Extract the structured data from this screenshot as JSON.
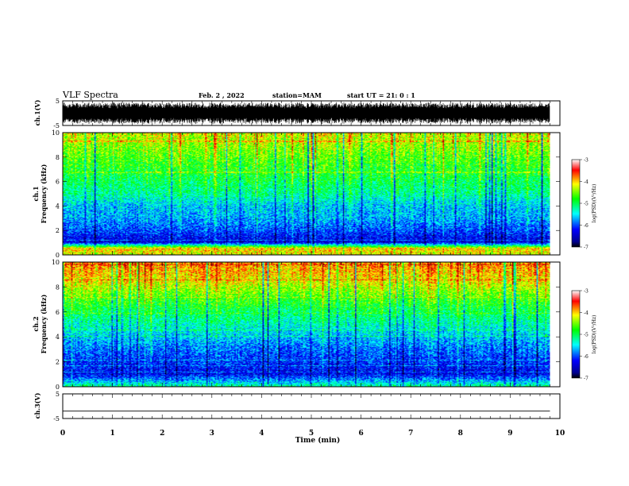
{
  "header": {
    "title": "VLF Spectra",
    "date": "Feb. 2 , 2022",
    "station": "station=MAM",
    "start": "start UT = 21: 0 : 1"
  },
  "chart_data": [
    {
      "type": "line",
      "name": "ch1-waveform",
      "ylabel": "ch.1(V)",
      "ylim": [
        -5,
        5
      ],
      "ytick_labels": [
        "5",
        "-5"
      ],
      "xlim": [
        0,
        10
      ],
      "description_visible": "dense oscillating waveform spanning roughly -5 to 5 V over 0–9.8 min"
    },
    {
      "type": "heatmap",
      "name": "ch1-spectrogram",
      "ylabel": "ch.1 Frequency (kHz)",
      "ylabel_lines": [
        "ch.1",
        "Frequency  (kHz)"
      ],
      "ylim": [
        0,
        10
      ],
      "ytick_labels": [
        "0",
        "2",
        "4",
        "6",
        "8",
        "10"
      ],
      "xlim": [
        0,
        10
      ],
      "data_extent_min": 9.8,
      "colorbar": {
        "label": "log(PSD)(V²/Hz)",
        "min": -7,
        "max": -3,
        "tick_labels": [
          "-3",
          "-4",
          "-5",
          "-6",
          "-7"
        ]
      },
      "profile_log_psd": [
        {
          "f_khz": 0.0,
          "level": -4.2
        },
        {
          "f_khz": 0.5,
          "level": -4.0
        },
        {
          "f_khz": 1.0,
          "level": -6.4
        },
        {
          "f_khz": 2.0,
          "level": -6.0
        },
        {
          "f_khz": 3.0,
          "level": -5.7
        },
        {
          "f_khz": 4.0,
          "level": -5.6
        },
        {
          "f_khz": 5.0,
          "level": -5.2
        },
        {
          "f_khz": 6.0,
          "level": -5.0
        },
        {
          "f_khz": 7.0,
          "level": -4.8
        },
        {
          "f_khz": 8.0,
          "level": -4.6
        },
        {
          "f_khz": 9.0,
          "level": -4.4
        },
        {
          "f_khz": 10.0,
          "level": -4.2
        }
      ]
    },
    {
      "type": "heatmap",
      "name": "ch2-spectrogram",
      "ylabel": "ch.2 Frequency (kHz)",
      "ylabel_lines": [
        "ch.2",
        "Frequency  (kHz)"
      ],
      "ylim": [
        0,
        10
      ],
      "ytick_labels": [
        "0",
        "2",
        "4",
        "6",
        "8",
        "10"
      ],
      "xlim": [
        0,
        10
      ],
      "data_extent_min": 9.8,
      "colorbar": {
        "label": "log(PSD)(V²/Hz)",
        "min": -7,
        "max": -3,
        "tick_labels": [
          "-3",
          "-4",
          "-5",
          "-6",
          "-7"
        ]
      },
      "profile_log_psd": [
        {
          "f_khz": 0.0,
          "level": -5.2
        },
        {
          "f_khz": 1.0,
          "level": -6.3
        },
        {
          "f_khz": 2.0,
          "level": -6.1
        },
        {
          "f_khz": 3.0,
          "level": -5.9
        },
        {
          "f_khz": 4.0,
          "level": -5.6
        },
        {
          "f_khz": 5.0,
          "level": -5.3
        },
        {
          "f_khz": 6.0,
          "level": -5.0
        },
        {
          "f_khz": 7.0,
          "level": -4.7
        },
        {
          "f_khz": 8.0,
          "level": -4.3
        },
        {
          "f_khz": 9.0,
          "level": -4.0
        },
        {
          "f_khz": 10.0,
          "level": -3.8
        }
      ]
    },
    {
      "type": "line",
      "name": "ch3-waveform",
      "ylabel": "ch.3(V)",
      "ylim": [
        -5,
        5
      ],
      "ytick_labels": [
        "5",
        "-5"
      ],
      "xlim": [
        0,
        10
      ],
      "series": [
        {
          "x": [
            0,
            9.8
          ],
          "y": [
            -2,
            -2
          ]
        }
      ]
    }
  ],
  "x_axis": {
    "label": "Time  (min)",
    "range": [
      0,
      10
    ],
    "tick_labels": [
      "0",
      "1",
      "2",
      "3",
      "4",
      "5",
      "6",
      "7",
      "8",
      "9",
      "10"
    ]
  },
  "colors": {
    "colormap": [
      "#00008f",
      "#0000ff",
      "#00ffff",
      "#00ff00",
      "#ffff00",
      "#ff0000",
      "#8f0000"
    ]
  }
}
